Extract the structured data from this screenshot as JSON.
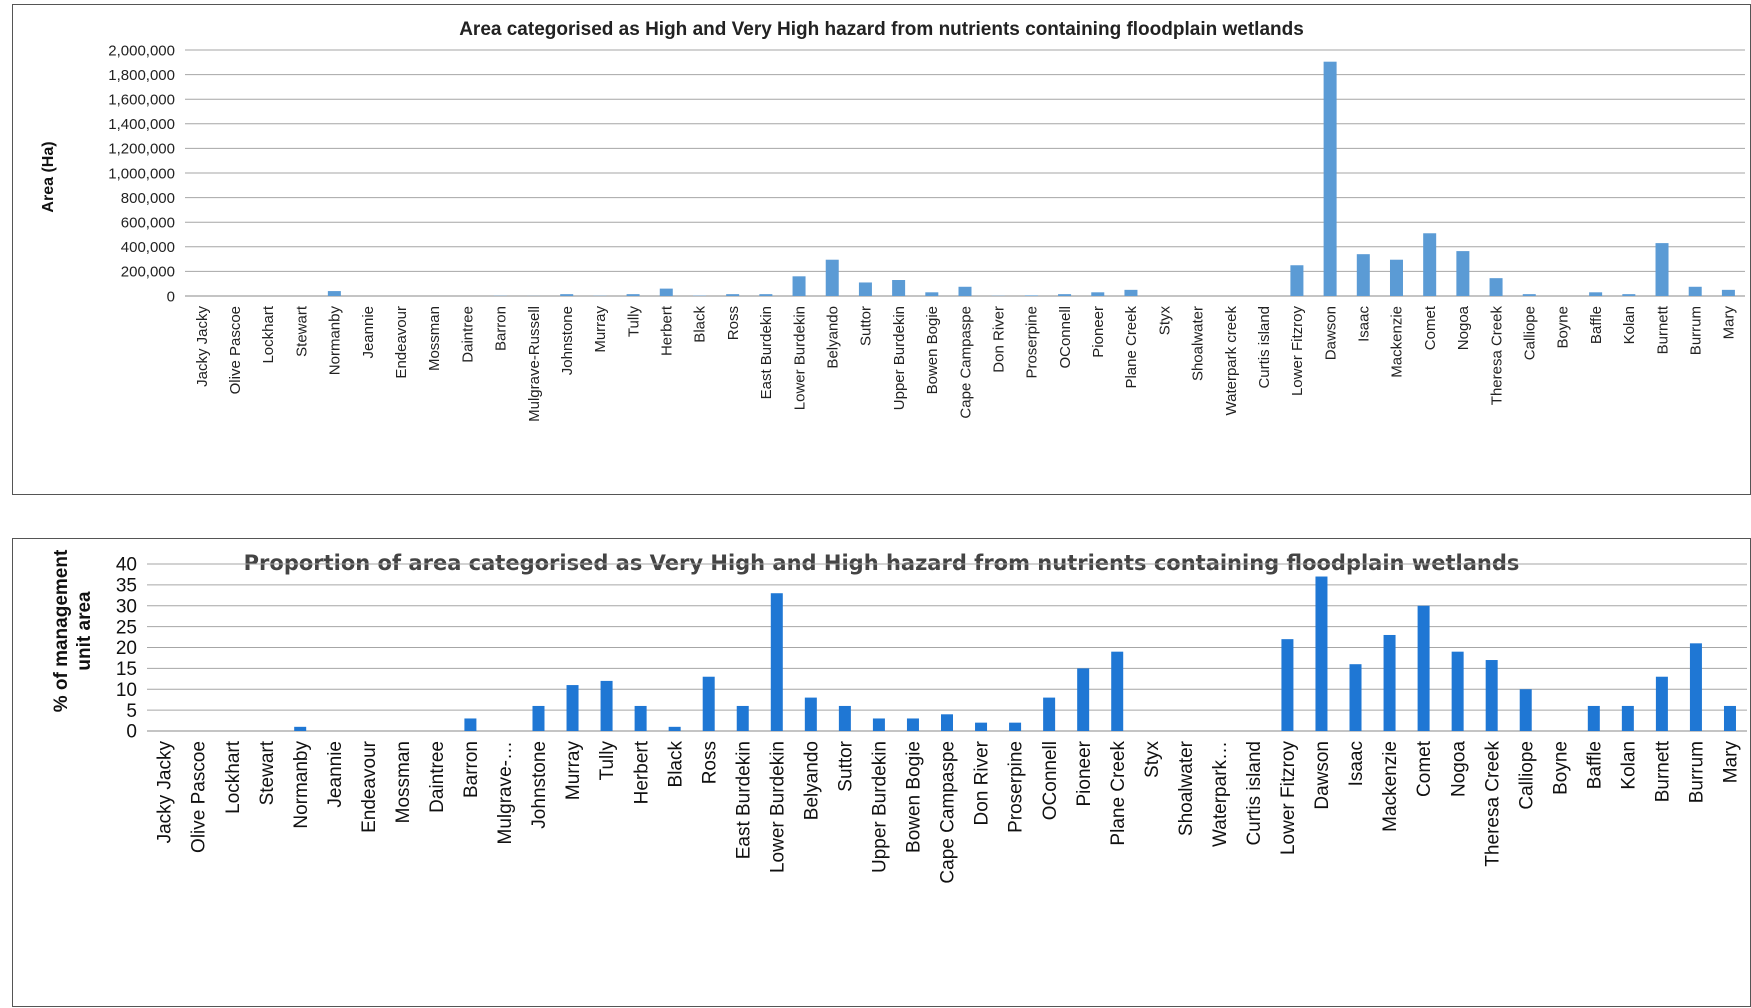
{
  "chart_data": [
    {
      "type": "bar",
      "title": "Area categorised as High and Very High hazard from nutrients containing floodplain wetlands",
      "xlabel": "",
      "ylabel": "Area (Ha)",
      "ylim": [
        0,
        2000000
      ],
      "yticks": [
        "0",
        "200,000",
        "400,000",
        "600,000",
        "800,000",
        "1,000,000",
        "1,200,000",
        "1,400,000",
        "1,600,000",
        "1,800,000",
        "2,000,000"
      ],
      "grid": true,
      "bar_color": "#5b9bd5",
      "categories": [
        "Jacky Jacky",
        "Olive Pascoe",
        "Lockhart",
        "Stewart",
        "Normanby",
        "Jeannie",
        "Endeavour",
        "Mossman",
        "Daintree",
        "Barron",
        "Mulgrave-Russell",
        "Johnstone",
        "Murray",
        "Tully",
        "Herbert",
        "Black",
        "Ross",
        "East Burdekin",
        "Lower Burdekin",
        "Belyando",
        "Suttor",
        "Upper Burdekin",
        "Bowen Bogie",
        "Cape Campaspe",
        "Don River",
        "Proserpine",
        "OConnell",
        "Pioneer",
        "Plane Creek",
        "Styx",
        "Shoalwater",
        "Waterpark creek",
        "Curtis island",
        "Lower Fitzroy",
        "Dawson",
        "Isaac",
        "Mackenzie",
        "Comet",
        "Nogoa",
        "Theresa Creek",
        "Calliope",
        "Boyne",
        "Baffle",
        "Kolan",
        "Burnett",
        "Burrum",
        "Mary"
      ],
      "values": [
        0,
        0,
        0,
        0,
        40000,
        0,
        0,
        0,
        0,
        2000,
        1000,
        15000,
        2000,
        15000,
        60000,
        3000,
        15000,
        15000,
        160000,
        295000,
        110000,
        130000,
        30000,
        75000,
        2000,
        5000,
        15000,
        30000,
        50000,
        0,
        0,
        0,
        0,
        250000,
        1905000,
        340000,
        295000,
        510000,
        365000,
        145000,
        15000,
        0,
        30000,
        15000,
        430000,
        75000,
        50000
      ]
    },
    {
      "type": "bar",
      "title": "Proportion of area categorised  as Very High and High hazard from nutrients containing floodplain wetlands",
      "xlabel": "",
      "ylabel": "% of management unit area",
      "ylabel_lines": [
        "% of management",
        "unit area"
      ],
      "ylim": [
        0,
        40
      ],
      "yticks": [
        "0",
        "5",
        "10",
        "15",
        "20",
        "25",
        "30",
        "35",
        "40"
      ],
      "grid": true,
      "bar_color": "#1f77d4",
      "categories": [
        "Jacky Jacky",
        "Olive Pascoe",
        "Lockhart",
        "Stewart",
        "Normanby",
        "Jeannie",
        "Endeavour",
        "Mossman",
        "Daintree",
        "Barron",
        "Mulgrave-…",
        "Johnstone",
        "Murray",
        "Tully",
        "Herbert",
        "Black",
        "Ross",
        "East Burdekin",
        "Lower Burdekin",
        "Belyando",
        "Suttor",
        "Upper Burdekin",
        "Bowen Bogie",
        "Cape Campaspe",
        "Don River",
        "Proserpine",
        "OConnell",
        "Pioneer",
        "Plane Creek",
        "Styx",
        "Shoalwater",
        "Waterpark…",
        "Curtis island",
        "Lower Fitzroy",
        "Dawson",
        "Isaac",
        "Mackenzie",
        "Comet",
        "Nogoa",
        "Theresa Creek",
        "Calliope",
        "Boyne",
        "Baffle",
        "Kolan",
        "Burnett",
        "Burrum",
        "Mary"
      ],
      "values": [
        0,
        0,
        0,
        0,
        1,
        0,
        0,
        0,
        0,
        3,
        0,
        6,
        11,
        12,
        6,
        1,
        13,
        6,
        33,
        8,
        6,
        3,
        3,
        4,
        2,
        2,
        8,
        15,
        19,
        0,
        0,
        0,
        0,
        22,
        37,
        16,
        23,
        30,
        19,
        17,
        10,
        0,
        6,
        6,
        13,
        21,
        6
      ]
    }
  ]
}
